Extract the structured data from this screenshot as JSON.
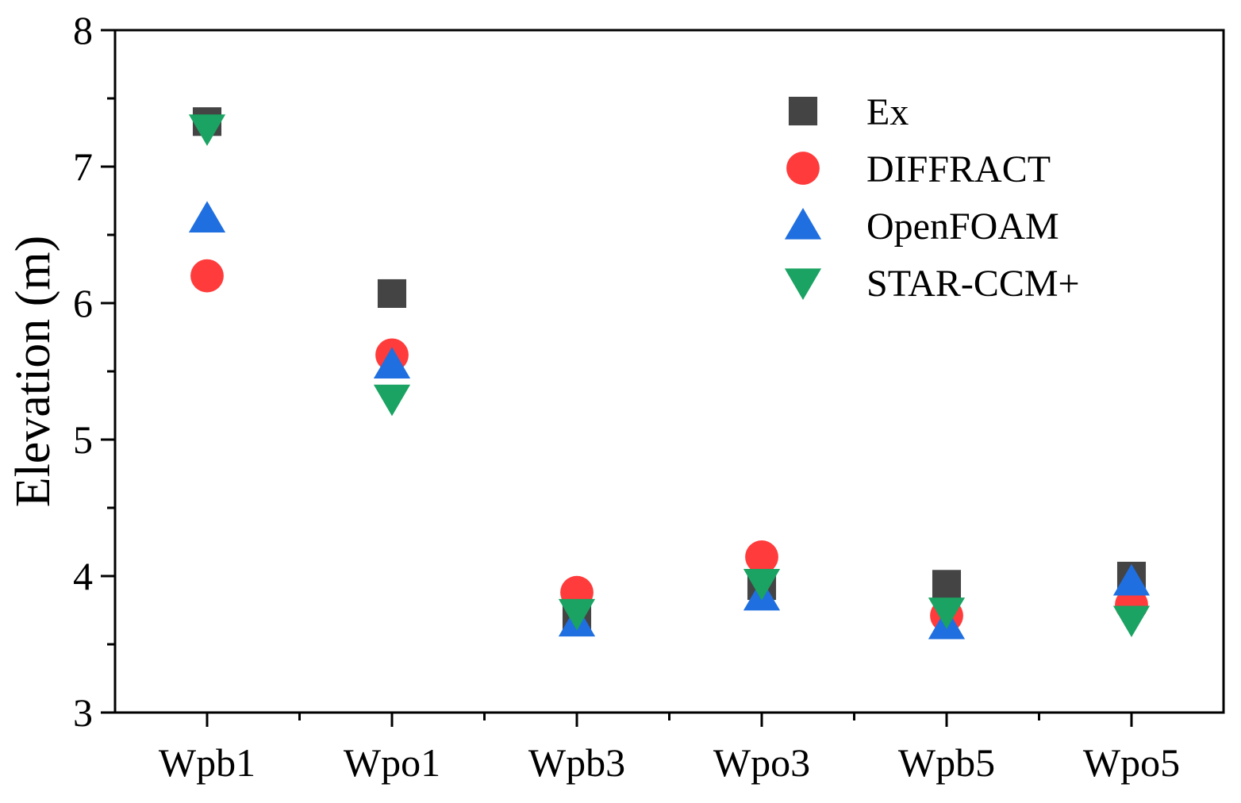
{
  "chart_data": {
    "type": "scatter",
    "title": "",
    "xlabel": "",
    "ylabel": "Elevation (m)",
    "categories": [
      "Wpb1",
      "Wpo1",
      "Wpb3",
      "Wpo3",
      "Wpb5",
      "Wpo5"
    ],
    "ylim": [
      3,
      8
    ],
    "yticks": [
      3,
      4,
      5,
      6,
      7,
      8
    ],
    "yticks_labels": [
      "3",
      "4",
      "5",
      "6",
      "7",
      "8"
    ],
    "grid": false,
    "legend_position": "top-right",
    "series": [
      {
        "name": "Ex",
        "marker": "square",
        "color": "#444444",
        "values": [
          7.33,
          6.07,
          3.7,
          3.93,
          3.94,
          4.0
        ]
      },
      {
        "name": "DIFFRACT",
        "marker": "circle",
        "color": "#ff3b3b",
        "values": [
          6.2,
          5.62,
          3.88,
          4.14,
          3.71,
          3.79
        ]
      },
      {
        "name": "OpenFOAM",
        "marker": "triangle-up",
        "color": "#1f6fe0",
        "values": [
          6.62,
          5.55,
          3.66,
          3.85,
          3.64,
          3.96
        ]
      },
      {
        "name": "STAR-CCM+",
        "marker": "triangle-down",
        "color": "#1aa362",
        "values": [
          7.28,
          5.3,
          3.73,
          3.95,
          3.74,
          3.68
        ]
      }
    ]
  }
}
